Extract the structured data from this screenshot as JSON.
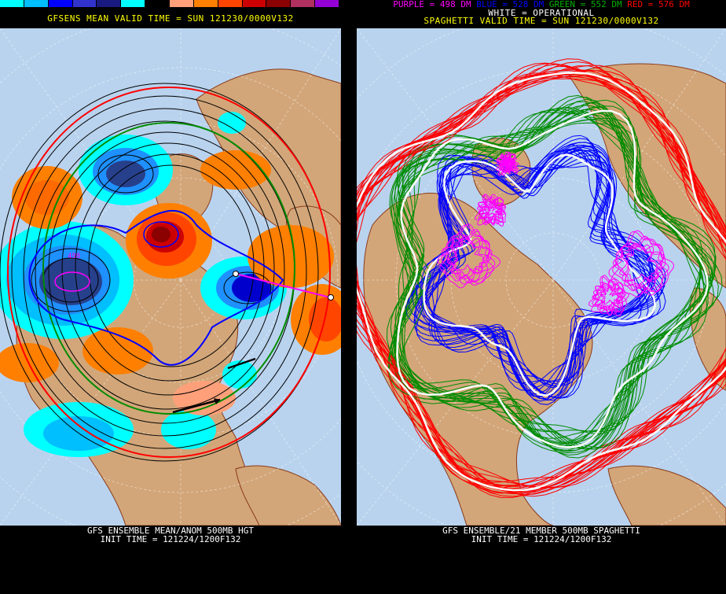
{
  "left": {
    "colorbar": [
      "#00ffff",
      "#00bfff",
      "#0000ff",
      "#3232cd",
      "#19197f",
      "#00ffff",
      "#000000",
      "#ffa07a",
      "#ff7f00",
      "#ff4500",
      "#cd0000",
      "#8b0000",
      "#b03060",
      "#9400d3"
    ],
    "title": "GFSENS MEAN VALID TIME = SUN 121230/0000V132",
    "low_label": "498",
    "footer_line1": "GFS ENSEMBLE MEAN/ANOM 500MB HGT",
    "footer_line2": "INIT TIME = 121224/1200F132"
  },
  "right": {
    "legend": {
      "purple": "PURPLE = 498 DM",
      "blue": "BLUE = 528 DM",
      "green": "GREEN = 552 DM",
      "red": "RED = 576 DM"
    },
    "white_label": "WHITE = OPERATIONAL",
    "title": "SPAGHETTI VALID TIME = SUN 121230/0000V132",
    "footer_line1": "GFS ENSEMBLE/21 MEMBER 500MB SPAGHETTI",
    "footer_line2": "INIT TIME = 121224/1200F132"
  },
  "colors": {
    "ocean": "#b9d3ee",
    "land": "#d2a679",
    "coast": "#8b3a1a",
    "purple": "#ff00ff",
    "blue": "#0000ff",
    "green": "#008c00",
    "red": "#ff0000",
    "white": "#ffffff"
  }
}
